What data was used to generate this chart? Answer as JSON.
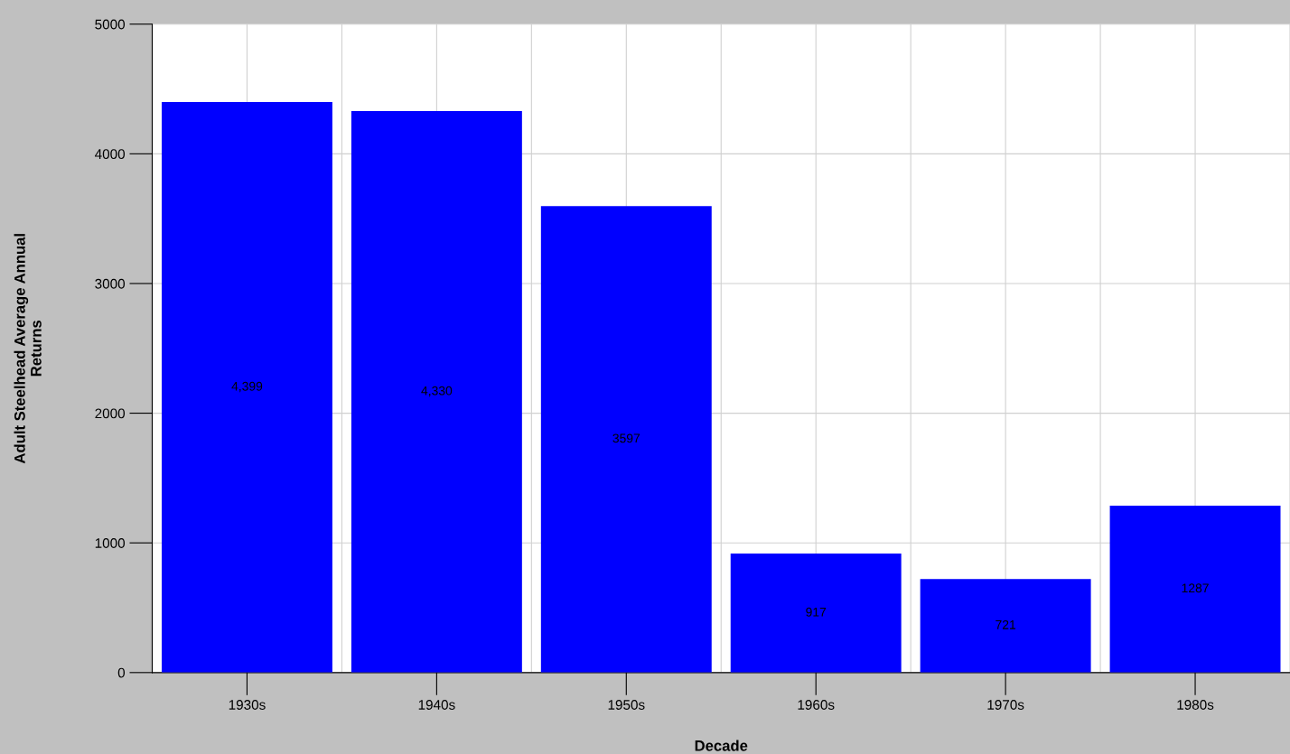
{
  "chart_data": {
    "type": "bar",
    "xlabel": "Decade",
    "ylabel": "Adult Steelhead Average Annual\nReturns",
    "categories": [
      "1930s",
      "1940s",
      "1950s",
      "1960s",
      "1970s",
      "1980s"
    ],
    "values": [
      4399,
      4330,
      3597,
      917,
      721,
      1287
    ],
    "value_labels": [
      "4,399",
      "4,330",
      "3597",
      "917",
      "721",
      "1287"
    ],
    "color": "#0000ff",
    "ylim": [
      0,
      5000
    ],
    "yticks": [
      0,
      1000,
      2000,
      3000,
      4000,
      5000
    ],
    "grid": true
  }
}
